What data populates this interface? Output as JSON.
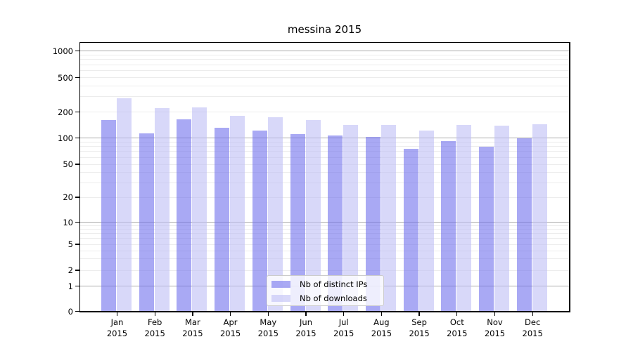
{
  "title": "messina 2015",
  "chart_data": {
    "type": "bar",
    "title": "messina 2015",
    "yscale": "symlog",
    "grid": "horizontal",
    "ylim": [
      0,
      1000
    ],
    "yticks": [
      1000,
      500,
      200,
      100,
      50,
      20,
      10,
      5,
      2,
      1,
      0
    ],
    "categories": [
      "Jan 2015",
      "Feb 2015",
      "Mar 2015",
      "Apr 2015",
      "May 2015",
      "Jun 2015",
      "Jul 2015",
      "Aug 2015",
      "Sep 2015",
      "Oct 2015",
      "Nov 2015",
      "Dec 2015"
    ],
    "series": [
      {
        "name": "Nb of distinct IPs",
        "color": "rgba(112,112,237,0.6)",
        "color_solid": "#a9a9f4",
        "values": [
          161,
          114,
          163,
          132,
          122,
          111,
          107,
          103,
          75,
          92,
          80,
          99
        ]
      },
      {
        "name": "Nb of downloads",
        "color": "rgba(190,190,245,0.6)",
        "color_solid": "#d8d8f9",
        "values": [
          291,
          221,
          224,
          181,
          174,
          162,
          141,
          142,
          122,
          141,
          138,
          144
        ]
      }
    ],
    "legend_position": "lower center, inside axes"
  }
}
